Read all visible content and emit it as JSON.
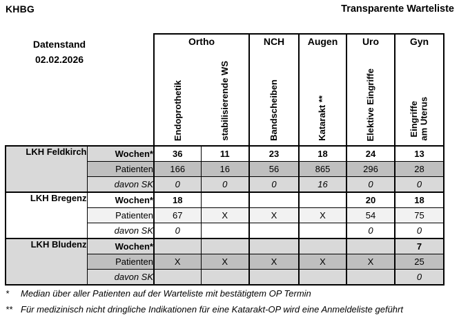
{
  "header": {
    "org": "KHBG",
    "title": "Transparente Warteliste",
    "datenstand_label": "Datenstand",
    "datenstand_date": "02.02.2026"
  },
  "table": {
    "groups": [
      {
        "label": "Ortho",
        "columns": [
          "Endoprothetik",
          "stabilisierende WS"
        ]
      },
      {
        "label": "NCH",
        "columns": [
          "Bandscheiben"
        ]
      },
      {
        "label": "Augen",
        "columns": [
          "Katarakt **"
        ]
      },
      {
        "label": "Uro",
        "columns": [
          "Elektive Eingriffe"
        ]
      },
      {
        "label": "Gyn",
        "columns": [
          "Eingriffe\nam Uterus"
        ]
      }
    ],
    "row_types": [
      "Wochen*",
      "Patienten",
      "davon SK"
    ],
    "hospitals": [
      {
        "name": "LKH Feldkirch",
        "rows": [
          {
            "type": "Wochen*",
            "values": [
              "36",
              "11",
              "23",
              "18",
              "24",
              "13"
            ]
          },
          {
            "type": "Patienten",
            "values": [
              "166",
              "16",
              "56",
              "865",
              "296",
              "28"
            ]
          },
          {
            "type": "davon SK",
            "values": [
              "0",
              "0",
              "0",
              "16",
              "0",
              "0"
            ]
          }
        ]
      },
      {
        "name": "LKH Bregenz",
        "rows": [
          {
            "type": "Wochen*",
            "values": [
              "18",
              "",
              "",
              "",
              "20",
              "18"
            ]
          },
          {
            "type": "Patienten",
            "values": [
              "67",
              "X",
              "X",
              "X",
              "54",
              "75"
            ]
          },
          {
            "type": "davon SK",
            "values": [
              "0",
              "",
              "",
              "",
              "0",
              "0"
            ]
          }
        ]
      },
      {
        "name": "LKH Bludenz",
        "rows": [
          {
            "type": "Wochen*",
            "values": [
              "",
              "",
              "",
              "",
              "",
              "7"
            ]
          },
          {
            "type": "Patienten",
            "values": [
              "X",
              "X",
              "X",
              "X",
              "X",
              "25"
            ]
          },
          {
            "type": "davon SK",
            "values": [
              "",
              "",
              "",
              "",
              "",
              "0"
            ]
          }
        ]
      }
    ]
  },
  "footnotes": [
    {
      "marker": "*",
      "text": "Median über aller Patienten auf der Warteliste mit bestätigtem OP Termin"
    },
    {
      "marker": "**",
      "text": "Für medizinisch nicht dringliche Indikationen für eine Katarakt-OP wird eine Anmeldeliste geführt"
    }
  ],
  "colors": {
    "border": "#000000",
    "text": "#000000",
    "shade_light": "#d9d9d9",
    "shade_medium": "#bfbfbf",
    "shade_faint": "#f2f2f2",
    "background": "#ffffff"
  }
}
